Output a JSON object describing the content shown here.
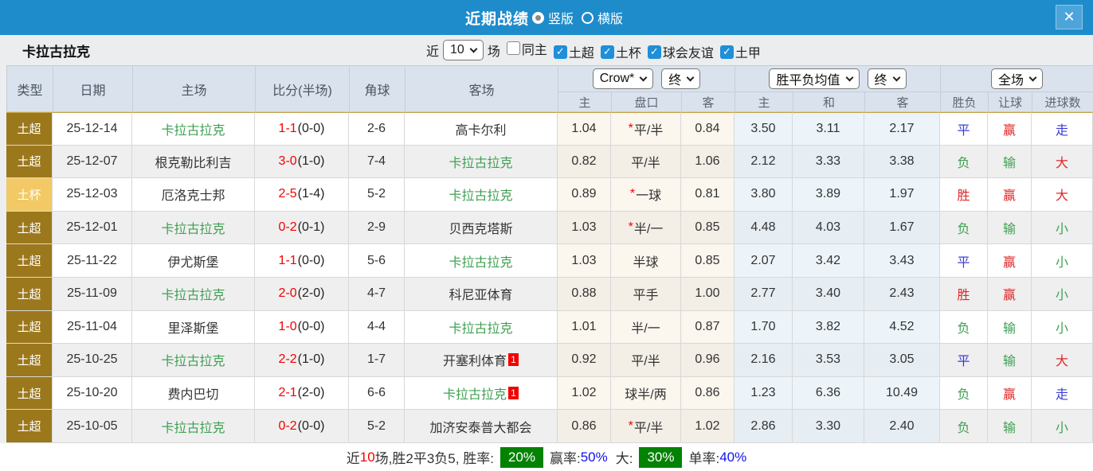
{
  "title_bar": {
    "title": "近期战绩",
    "radio_vertical": "竖版",
    "radio_horizontal": "横版",
    "close_label": "✕"
  },
  "filter_bar": {
    "team_name": "卡拉古拉克",
    "near_label": "近",
    "count_value": "10",
    "games_label": "场",
    "checkboxes": [
      {
        "label": "同主",
        "checked": false
      },
      {
        "label": "土超",
        "checked": true
      },
      {
        "label": "土杯",
        "checked": true
      },
      {
        "label": "球会友谊",
        "checked": true
      },
      {
        "label": "土甲",
        "checked": true
      }
    ]
  },
  "table": {
    "left_headers": [
      "类型",
      "日期",
      "主场",
      "比分(半场)",
      "角球",
      "客场"
    ],
    "groups": [
      {
        "selects": [
          "Crow*",
          "终"
        ],
        "subcols": [
          "主",
          "盘口",
          "客"
        ]
      },
      {
        "selects": [
          "胜平负均值",
          "终"
        ],
        "subcols": [
          "主",
          "和",
          "客"
        ]
      },
      {
        "selects": [
          "全场"
        ],
        "subcols": [
          "胜负",
          "让球",
          "进球数"
        ]
      }
    ],
    "rows": [
      {
        "type": {
          "label": "土超",
          "style": "super"
        },
        "date": "25-12-14",
        "home": {
          "name": "卡拉古拉克",
          "subject": true,
          "red_card": ""
        },
        "score": {
          "full": "1-1",
          "half": "(0-0)"
        },
        "corners": "2-6",
        "away": {
          "name": "高卡尔利",
          "subject": false,
          "red_card": ""
        },
        "handicap": {
          "home": "1.04",
          "star": "*",
          "line": "平/半",
          "away": "0.84"
        },
        "europe": {
          "home": "3.50",
          "draw": "3.11",
          "away": "2.17"
        },
        "results": [
          {
            "text": "平",
            "color": "blue"
          },
          {
            "text": "赢",
            "color": "red"
          },
          {
            "text": "走",
            "color": "blue"
          }
        ]
      },
      {
        "type": {
          "label": "土超",
          "style": "super"
        },
        "date": "25-12-07",
        "home": {
          "name": "根克勒比利吉",
          "subject": false,
          "red_card": ""
        },
        "score": {
          "full": "3-0",
          "half": "(1-0)"
        },
        "corners": "7-4",
        "away": {
          "name": "卡拉古拉克",
          "subject": true,
          "red_card": ""
        },
        "handicap": {
          "home": "0.82",
          "star": "",
          "line": "平/半",
          "away": "1.06"
        },
        "europe": {
          "home": "2.12",
          "draw": "3.33",
          "away": "3.38"
        },
        "results": [
          {
            "text": "负",
            "color": "green"
          },
          {
            "text": "输",
            "color": "green"
          },
          {
            "text": "大",
            "color": "red"
          }
        ]
      },
      {
        "type": {
          "label": "土杯",
          "style": "cup"
        },
        "date": "25-12-03",
        "home": {
          "name": "厄洛克士邦",
          "subject": false,
          "red_card": ""
        },
        "score": {
          "full": "2-5",
          "half": "(1-4)"
        },
        "corners": "5-2",
        "away": {
          "name": "卡拉古拉克",
          "subject": true,
          "red_card": ""
        },
        "handicap": {
          "home": "0.89",
          "star": "*",
          "line": "一球",
          "away": "0.81"
        },
        "europe": {
          "home": "3.80",
          "draw": "3.89",
          "away": "1.97"
        },
        "results": [
          {
            "text": "胜",
            "color": "red"
          },
          {
            "text": "赢",
            "color": "red"
          },
          {
            "text": "大",
            "color": "red"
          }
        ]
      },
      {
        "type": {
          "label": "土超",
          "style": "super"
        },
        "date": "25-12-01",
        "home": {
          "name": "卡拉古拉克",
          "subject": true,
          "red_card": ""
        },
        "score": {
          "full": "0-2",
          "half": "(0-1)"
        },
        "corners": "2-9",
        "away": {
          "name": "贝西克塔斯",
          "subject": false,
          "red_card": ""
        },
        "handicap": {
          "home": "1.03",
          "star": "*",
          "line": "半/一",
          "away": "0.85"
        },
        "europe": {
          "home": "4.48",
          "draw": "4.03",
          "away": "1.67"
        },
        "results": [
          {
            "text": "负",
            "color": "green"
          },
          {
            "text": "输",
            "color": "green"
          },
          {
            "text": "小",
            "color": "green"
          }
        ]
      },
      {
        "type": {
          "label": "土超",
          "style": "super"
        },
        "date": "25-11-22",
        "home": {
          "name": "伊尤斯堡",
          "subject": false,
          "red_card": ""
        },
        "score": {
          "full": "1-1",
          "half": "(0-0)"
        },
        "corners": "5-6",
        "away": {
          "name": "卡拉古拉克",
          "subject": true,
          "red_card": ""
        },
        "handicap": {
          "home": "1.03",
          "star": "",
          "line": "半球",
          "away": "0.85"
        },
        "europe": {
          "home": "2.07",
          "draw": "3.42",
          "away": "3.43"
        },
        "results": [
          {
            "text": "平",
            "color": "blue"
          },
          {
            "text": "赢",
            "color": "red"
          },
          {
            "text": "小",
            "color": "green"
          }
        ]
      },
      {
        "type": {
          "label": "土超",
          "style": "super"
        },
        "date": "25-11-09",
        "home": {
          "name": "卡拉古拉克",
          "subject": true,
          "red_card": ""
        },
        "score": {
          "full": "2-0",
          "half": "(2-0)"
        },
        "corners": "4-7",
        "away": {
          "name": "科尼亚体育",
          "subject": false,
          "red_card": ""
        },
        "handicap": {
          "home": "0.88",
          "star": "",
          "line": "平手",
          "away": "1.00"
        },
        "europe": {
          "home": "2.77",
          "draw": "3.40",
          "away": "2.43"
        },
        "results": [
          {
            "text": "胜",
            "color": "red"
          },
          {
            "text": "赢",
            "color": "red"
          },
          {
            "text": "小",
            "color": "green"
          }
        ]
      },
      {
        "type": {
          "label": "土超",
          "style": "super"
        },
        "date": "25-11-04",
        "home": {
          "name": "里泽斯堡",
          "subject": false,
          "red_card": ""
        },
        "score": {
          "full": "1-0",
          "half": "(0-0)"
        },
        "corners": "4-4",
        "away": {
          "name": "卡拉古拉克",
          "subject": true,
          "red_card": ""
        },
        "handicap": {
          "home": "1.01",
          "star": "",
          "line": "半/一",
          "away": "0.87"
        },
        "europe": {
          "home": "1.70",
          "draw": "3.82",
          "away": "4.52"
        },
        "results": [
          {
            "text": "负",
            "color": "green"
          },
          {
            "text": "输",
            "color": "green"
          },
          {
            "text": "小",
            "color": "green"
          }
        ]
      },
      {
        "type": {
          "label": "土超",
          "style": "super"
        },
        "date": "25-10-25",
        "home": {
          "name": "卡拉古拉克",
          "subject": true,
          "red_card": ""
        },
        "score": {
          "full": "2-2",
          "half": "(1-0)"
        },
        "corners": "1-7",
        "away": {
          "name": "开塞利体育",
          "subject": false,
          "red_card": "1"
        },
        "handicap": {
          "home": "0.92",
          "star": "",
          "line": "平/半",
          "away": "0.96"
        },
        "europe": {
          "home": "2.16",
          "draw": "3.53",
          "away": "3.05"
        },
        "results": [
          {
            "text": "平",
            "color": "blue"
          },
          {
            "text": "输",
            "color": "green"
          },
          {
            "text": "大",
            "color": "red"
          }
        ]
      },
      {
        "type": {
          "label": "土超",
          "style": "super"
        },
        "date": "25-10-20",
        "home": {
          "name": "费内巴切",
          "subject": false,
          "red_card": ""
        },
        "score": {
          "full": "2-1",
          "half": "(2-0)"
        },
        "corners": "6-6",
        "away": {
          "name": "卡拉古拉克",
          "subject": true,
          "red_card": "1"
        },
        "handicap": {
          "home": "1.02",
          "star": "",
          "line": "球半/两",
          "away": "0.86"
        },
        "europe": {
          "home": "1.23",
          "draw": "6.36",
          "away": "10.49"
        },
        "results": [
          {
            "text": "负",
            "color": "green"
          },
          {
            "text": "赢",
            "color": "red"
          },
          {
            "text": "走",
            "color": "blue"
          }
        ]
      },
      {
        "type": {
          "label": "土超",
          "style": "super"
        },
        "date": "25-10-05",
        "home": {
          "name": "卡拉古拉克",
          "subject": true,
          "red_card": ""
        },
        "score": {
          "full": "0-2",
          "half": "(0-0)"
        },
        "corners": "5-2",
        "away": {
          "name": "加济安泰普大都会",
          "subject": false,
          "red_card": ""
        },
        "handicap": {
          "home": "0.86",
          "star": "*",
          "line": "平/半",
          "away": "1.02"
        },
        "europe": {
          "home": "2.86",
          "draw": "3.30",
          "away": "2.40"
        },
        "results": [
          {
            "text": "负",
            "color": "green"
          },
          {
            "text": "输",
            "color": "green"
          },
          {
            "text": "小",
            "color": "green"
          }
        ]
      }
    ]
  },
  "footer": {
    "near_label": "近",
    "count": "10",
    "record": "场,胜2平3负5, 胜率:",
    "win_rate": "20%",
    "odds_label": "赢率:",
    "odds_rate": "50%",
    "big_label": "大:",
    "big_rate": "30%",
    "single_label": "单率:",
    "single_rate": "40%"
  }
}
